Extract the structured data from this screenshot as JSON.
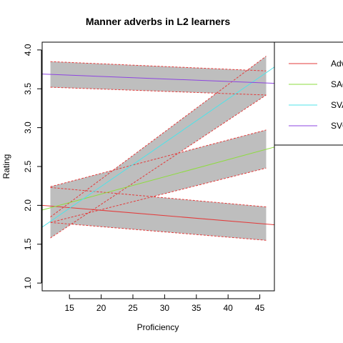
{
  "chart_data": {
    "type": "line",
    "title": "Manner adverbs in L2 learners",
    "xlabel": "Proficiency",
    "ylabel": "Rating",
    "xlim": [
      10.7,
      47.3
    ],
    "ylim": [
      0.9,
      4.1
    ],
    "xticks": [
      15,
      20,
      25,
      30,
      35,
      40,
      45
    ],
    "yticks": [
      1.0,
      1.5,
      2.0,
      2.5,
      3.0,
      3.5,
      4.0
    ],
    "grid": false,
    "legend_position": "top-right",
    "series": [
      {
        "name": "Adv",
        "color": "#e33b3b",
        "x": [
          10.7,
          47.3
        ],
        "y": [
          2.0,
          1.75
        ],
        "ci_x": [
          12,
          46
        ],
        "ci_upper": [
          2.23,
          1.98
        ],
        "ci_lower": [
          1.78,
          1.55
        ]
      },
      {
        "name": "SAdv",
        "color": "#8edc3f",
        "x": [
          10.7,
          47.3
        ],
        "y": [
          1.94,
          2.75
        ],
        "ci_x": [
          12,
          46
        ],
        "ci_upper": [
          2.24,
          2.97
        ],
        "ci_lower": [
          1.78,
          2.48
        ]
      },
      {
        "name": "SVAdv",
        "color": "#4fe3e8",
        "x": [
          10.7,
          47.3
        ],
        "y": [
          1.72,
          3.78
        ],
        "ci_x": [
          12,
          46
        ],
        "ci_upper": [
          1.85,
          3.92
        ],
        "ci_lower": [
          1.58,
          3.42
        ]
      },
      {
        "name": "SVO",
        "color": "#8d45e0",
        "x": [
          10.7,
          47.3
        ],
        "y": [
          3.69,
          3.57
        ],
        "ci_x": [
          12,
          46
        ],
        "ci_upper": [
          3.85,
          3.73
        ],
        "ci_lower": [
          3.52,
          3.42
        ]
      }
    ],
    "ci_fill_color": "#bebebe",
    "ci_border_color": "#e33b3b"
  }
}
